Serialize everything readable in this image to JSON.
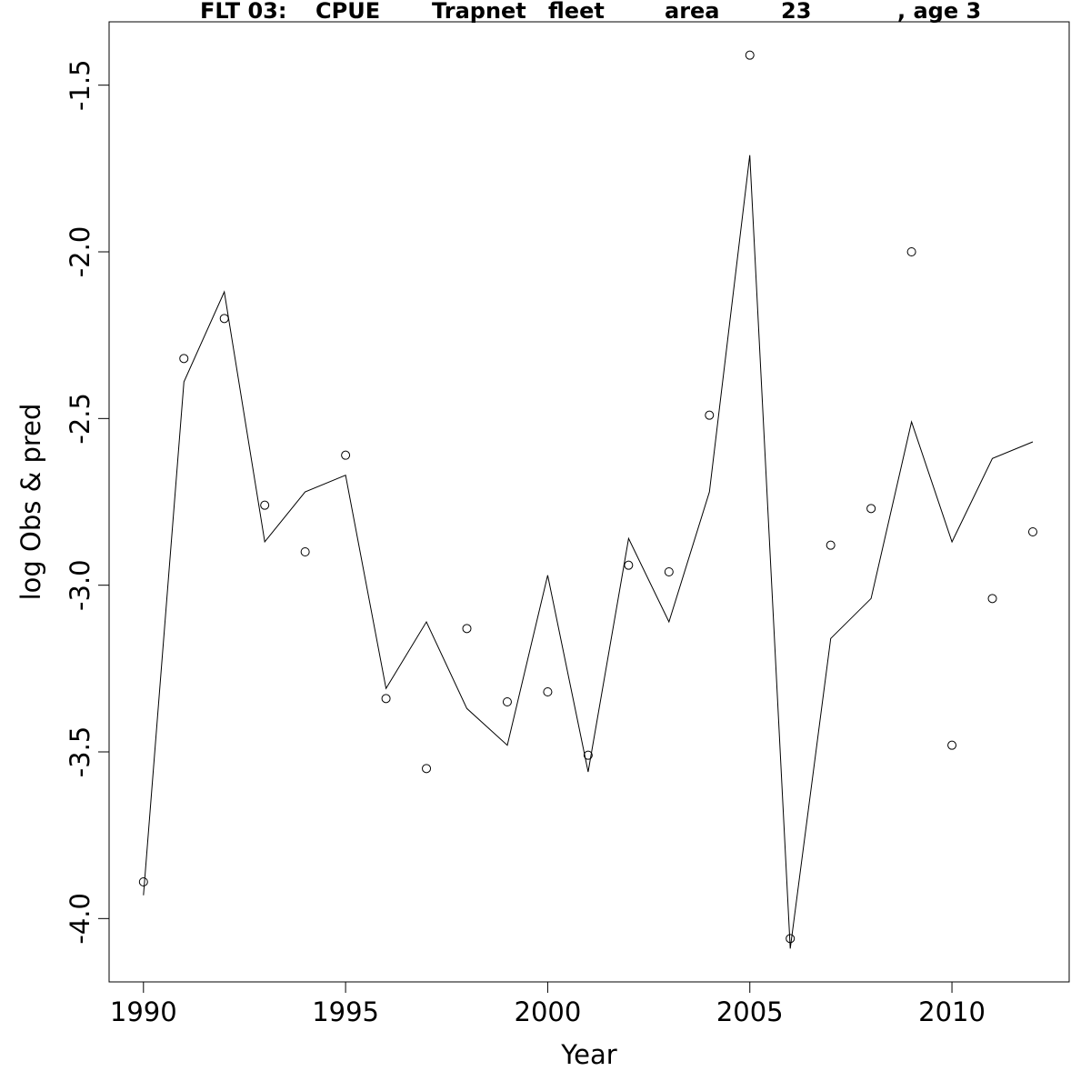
{
  "chart_data": {
    "type": "line",
    "title_parts": [
      "FLT 03:",
      "CPUE",
      "Trapnet",
      "fleet",
      "area",
      "23",
      ", age 3"
    ],
    "xlabel": "Year",
    "ylabel": "log Obs & pred",
    "xlim": [
      1989.15,
      2012.9
    ],
    "ylim": [
      -4.19,
      -1.31
    ],
    "xticks": [
      1990,
      1995,
      2000,
      2005,
      2010
    ],
    "yticks": [
      -4.0,
      -3.5,
      -3.0,
      -2.5,
      -2.0,
      -1.5
    ],
    "ytick_labels": [
      "-4.0",
      "-3.5",
      "-3.0",
      "-2.5",
      "-2.0",
      "-1.5"
    ],
    "grid": false,
    "series": [
      {
        "style": "points",
        "x": [
          1990,
          1991,
          1992,
          1993,
          1994,
          1995,
          1996,
          1997,
          1998,
          1999,
          2000,
          2001,
          2002,
          2003,
          2004,
          2005,
          2006,
          2007,
          2008,
          2009,
          2010,
          2011,
          2012
        ],
        "y": [
          -3.89,
          -2.32,
          -2.2,
          -2.76,
          -2.9,
          -2.61,
          -3.34,
          -3.55,
          -3.13,
          -3.35,
          -3.32,
          -3.51,
          -2.94,
          -2.96,
          -2.49,
          -1.41,
          -4.06,
          -2.88,
          -2.77,
          -2.0,
          -3.48,
          -3.04,
          -2.84
        ]
      },
      {
        "style": "line",
        "x": [
          1990,
          1991,
          1992,
          1993,
          1994,
          1995,
          1996,
          1997,
          1998,
          1999,
          2000,
          2001,
          2002,
          2003,
          2004,
          2005,
          2006,
          2007,
          2008,
          2009,
          2010,
          2011,
          2012
        ],
        "y": [
          -3.93,
          -2.39,
          -2.12,
          -2.87,
          -2.72,
          -2.67,
          -3.31,
          -3.11,
          -3.37,
          -3.48,
          -2.97,
          -3.56,
          -2.86,
          -3.11,
          -2.72,
          -1.71,
          -4.09,
          -3.16,
          -3.04,
          -2.51,
          -2.87,
          -2.62,
          -2.57
        ]
      }
    ]
  }
}
